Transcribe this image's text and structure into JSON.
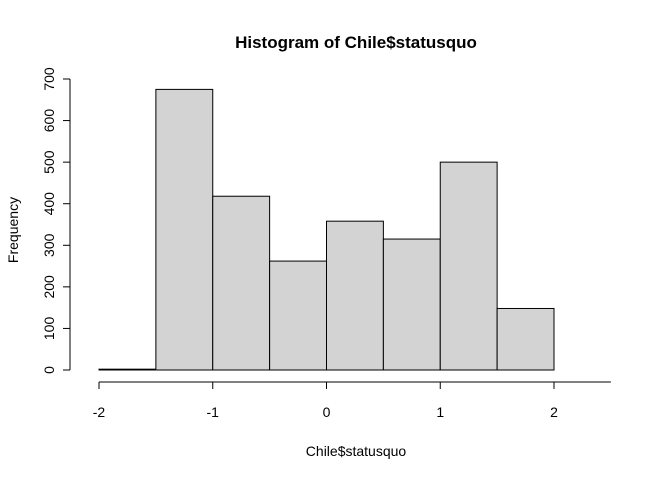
{
  "chart_data": {
    "type": "bar",
    "title": "Histogram of Chile$statusquo",
    "xlabel": "Chile$statusquo",
    "ylabel": "Frequency",
    "bins": [
      {
        "start": -2.0,
        "end": -1.5,
        "count": 2
      },
      {
        "start": -1.5,
        "end": -1.0,
        "count": 675
      },
      {
        "start": -1.0,
        "end": -0.5,
        "count": 418
      },
      {
        "start": -0.5,
        "end": 0.0,
        "count": 262
      },
      {
        "start": 0.0,
        "end": 0.5,
        "count": 358
      },
      {
        "start": 0.5,
        "end": 1.0,
        "count": 315
      },
      {
        "start": 1.0,
        "end": 1.5,
        "count": 500
      },
      {
        "start": 1.5,
        "end": 2.0,
        "count": 148
      }
    ],
    "xlim": [
      -2,
      2.5
    ],
    "ylim": [
      0,
      700
    ],
    "x_ticks": [
      "-2",
      "-1",
      "0",
      "1",
      "2"
    ],
    "y_ticks": [
      "0",
      "100",
      "200",
      "300",
      "400",
      "500",
      "600",
      "700"
    ],
    "bar_color": "#d3d3d3",
    "grid": false
  }
}
